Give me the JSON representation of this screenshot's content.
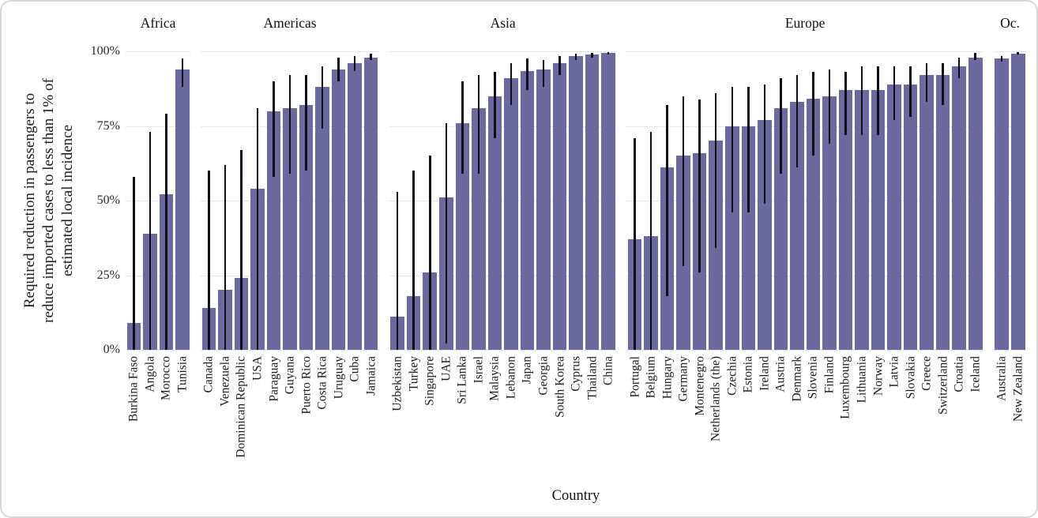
{
  "figure": {
    "ylabel_lines": [
      "Required reduction in passengers to",
      "reduce imported cases to less than 1% of",
      "estimated local incidence"
    ],
    "xlabel": "Country",
    "background": "#ffffff",
    "border_color": "#d8d8d8"
  },
  "chart_data": {
    "type": "bar",
    "title": "",
    "xlabel": "Country",
    "ylabel": "Required reduction in passengers to reduce imported cases to less than 1% of estimated local incidence",
    "ylim": [
      0,
      100
    ],
    "yticks": [
      0,
      25,
      50,
      75,
      100
    ],
    "ytick_labels": [
      "0%",
      "25%",
      "50%",
      "75%",
      "100%"
    ],
    "grid": true,
    "legend_position": "none",
    "bar_color": "#6c699e",
    "error_bar_color": "#0e0e18",
    "facets": [
      {
        "label": "Africa",
        "countries": [
          "Burkina Faso",
          "Angola",
          "Morocco",
          "Tunisia"
        ],
        "values": [
          9,
          39,
          52,
          94
        ],
        "ci_low": [
          0,
          0,
          0,
          88
        ],
        "ci_high": [
          58,
          73,
          79,
          97.5
        ]
      },
      {
        "label": "Americas",
        "countries": [
          "Canada",
          "Venezuela",
          "Dominican Republic",
          "USA",
          "Paraguay",
          "Guyana",
          "Puerto Rico",
          "Costa Rica",
          "Uruguay",
          "Cuba",
          "Jamaica"
        ],
        "values": [
          14,
          20,
          24,
          54,
          80,
          81,
          82,
          88,
          94,
          96,
          98
        ],
        "ci_low": [
          0,
          0,
          0,
          0,
          58,
          59,
          60,
          74,
          90,
          93.5,
          97
        ],
        "ci_high": [
          60,
          62,
          67,
          81,
          90,
          92,
          92,
          95,
          98,
          98.5,
          99.3
        ]
      },
      {
        "label": "Asia",
        "countries": [
          "Uzbekistan",
          "Turkey",
          "Singapore",
          "UAE",
          "Sri Lanka",
          "Israel",
          "Malaysia",
          "Lebanon",
          "Japan",
          "Georgia",
          "South Korea",
          "Cyprus",
          "Thailand",
          "China"
        ],
        "values": [
          11,
          18,
          26,
          51,
          76,
          81,
          85,
          91,
          93.5,
          94,
          96,
          98.5,
          99,
          99.5
        ],
        "ci_low": [
          0,
          0,
          0,
          2,
          59,
          59,
          71,
          82,
          87,
          88,
          92,
          97,
          98,
          99
        ],
        "ci_high": [
          53,
          60,
          65,
          76,
          90,
          92,
          93,
          96,
          97.5,
          97,
          98.5,
          99.3,
          99.5,
          99.8
        ]
      },
      {
        "label": "Europe",
        "countries": [
          "Portugal",
          "Belgium",
          "Hungary",
          "Germany",
          "Montenegro",
          "Netherlands (the)",
          "Czechia",
          "Estonia",
          "Ireland",
          "Austria",
          "Denmark",
          "Slovenia",
          "Finland",
          "Luxembourg",
          "Lithuania",
          "Norway",
          "Latvia",
          "Slovakia",
          "Greece",
          "Switzerland",
          "Croatia",
          "Iceland"
        ],
        "values": [
          37,
          38,
          61,
          65,
          66,
          70,
          75,
          75,
          77,
          81,
          83,
          84,
          85,
          87,
          87,
          87,
          89,
          89,
          92,
          92,
          95,
          98
        ],
        "ci_low": [
          0,
          0,
          18,
          28,
          26,
          34,
          46,
          46,
          49,
          59,
          61,
          65,
          69,
          72,
          72,
          72,
          77,
          78,
          83,
          82,
          91,
          97
        ],
        "ci_high": [
          71,
          73,
          82,
          85,
          84,
          86,
          88,
          88,
          89,
          91,
          92,
          93,
          94,
          93,
          95,
          95,
          95,
          95,
          96,
          96,
          98,
          99.5
        ]
      },
      {
        "label": "Oc.",
        "countries": [
          "Australia",
          "New Zealand"
        ],
        "values": [
          97.5,
          99.3
        ],
        "ci_low": [
          96.5,
          99
        ],
        "ci_high": [
          98.5,
          99.7
        ]
      }
    ]
  }
}
